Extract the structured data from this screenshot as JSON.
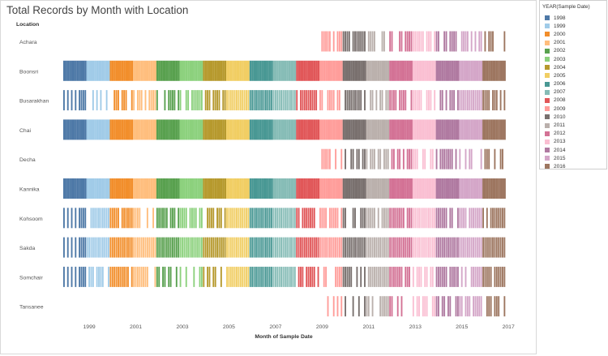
{
  "title": "Total Records by Month with Location",
  "chart_data": {
    "type": "bar",
    "orientation": "horizontal",
    "title": "Total Records by Month with Location",
    "xlabel": "Month of Sample Date",
    "ylabel": "Location",
    "xlim": [
      "1998-01",
      "2017-03"
    ],
    "x_ticks": [
      "1999",
      "2001",
      "2003",
      "2005",
      "2007",
      "2009",
      "2011",
      "2013",
      "2015",
      "2017"
    ],
    "categories": [
      "Achara",
      "Boonsri",
      "Busarakhan",
      "Chai",
      "Decha",
      "Kannika",
      "Kohsoom",
      "Sakda",
      "Somchair",
      "Tansanee"
    ],
    "legend": {
      "title": "YEAR(Sample Date)",
      "placement": "right",
      "items": [
        {
          "year": "1998",
          "color": "#4e79a7"
        },
        {
          "year": "1999",
          "color": "#a0cbe8"
        },
        {
          "year": "2000",
          "color": "#f28e2b"
        },
        {
          "year": "2001",
          "color": "#ffbe7d"
        },
        {
          "year": "2002",
          "color": "#59a14f"
        },
        {
          "year": "2003",
          "color": "#8cd17d"
        },
        {
          "year": "2004",
          "color": "#b6992d"
        },
        {
          "year": "2005",
          "color": "#f1ce63"
        },
        {
          "year": "2006",
          "color": "#499894"
        },
        {
          "year": "2007",
          "color": "#86bcb6"
        },
        {
          "year": "2008",
          "color": "#e15759"
        },
        {
          "year": "2009",
          "color": "#ff9d9a"
        },
        {
          "year": "2010",
          "color": "#79706e"
        },
        {
          "year": "2011",
          "color": "#bab0ac"
        },
        {
          "year": "2012",
          "color": "#d37295"
        },
        {
          "year": "2013",
          "color": "#fabfd2"
        },
        {
          "year": "2014",
          "color": "#b07aa1"
        },
        {
          "year": "2015",
          "color": "#d4a6c8"
        },
        {
          "year": "2016",
          "color": "#9d7660"
        }
      ]
    },
    "rows": [
      {
        "location": "Achara",
        "year_from": 2009,
        "year_to": 2016,
        "month_pattern": "sparse",
        "note": "records present in most months 2009–2016"
      },
      {
        "location": "Boonsri",
        "year_from": 1998,
        "year_to": 2016,
        "month_pattern": "full",
        "note": "records every month"
      },
      {
        "location": "Busarakhan",
        "year_from": 1998,
        "year_to": 2016,
        "month_pattern": "partial",
        "note": "begins late 1998, gaps in 1999–2004"
      },
      {
        "location": "Chai",
        "year_from": 1998,
        "year_to": 2016,
        "month_pattern": "full",
        "note": "records every month"
      },
      {
        "location": "Decha",
        "year_from": 2009,
        "year_to": 2016,
        "month_pattern": "sparse",
        "note": "intermittent months 2009–2016"
      },
      {
        "location": "Kannika",
        "year_from": 1998,
        "year_to": 2016,
        "month_pattern": "full",
        "note": "records every month"
      },
      {
        "location": "Kohsoom",
        "year_from": 1998,
        "year_to": 2016,
        "month_pattern": "partial",
        "note": "gaps in 1998 and 2002–2003"
      },
      {
        "location": "Sakda",
        "year_from": 1998,
        "year_to": 2016,
        "month_pattern": "mostly",
        "note": "gaps only in 1998"
      },
      {
        "location": "Somchair",
        "year_from": 1998,
        "year_to": 2016,
        "month_pattern": "partial",
        "note": "gaps in 1998, 2002–2004, 2008–2016"
      },
      {
        "location": "Tansanee",
        "year_from": 2009,
        "year_to": 2016,
        "month_pattern": "sparse",
        "note": "intermittent months 2009–2016"
      }
    ]
  }
}
